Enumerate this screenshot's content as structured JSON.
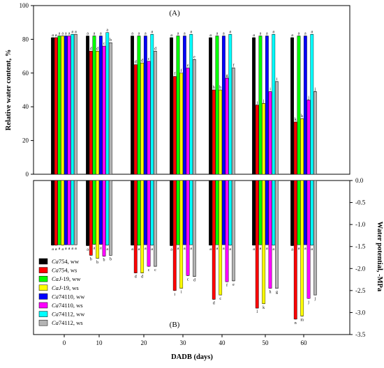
{
  "chart_data": [
    {
      "type": "bar",
      "panel_label": "(A)",
      "ylabel": "Relative water content, %",
      "ylim": [
        0,
        100
      ],
      "yticks": [
        0,
        20,
        40,
        60,
        80,
        100
      ],
      "categories": [
        "0",
        "10",
        "20",
        "30",
        "40",
        "50",
        "60"
      ],
      "series": [
        {
          "name": "Ca754, ww",
          "color": "#000000",
          "values": [
            81,
            82,
            82,
            81,
            81,
            81,
            81
          ]
        },
        {
          "name": "Ca754, ws",
          "color": "#ff0000",
          "values": [
            81,
            73,
            65,
            58,
            50,
            41,
            31
          ]
        },
        {
          "name": "CaJ-19, ww",
          "color": "#00ff00",
          "values": [
            82,
            82,
            82,
            82,
            82,
            82,
            82
          ]
        },
        {
          "name": "CaJ-19, ws",
          "color": "#ffff00",
          "values": [
            82,
            73,
            66,
            60,
            50,
            42,
            33
          ]
        },
        {
          "name": "Ca74110, ww",
          "color": "#0000ff",
          "values": [
            82,
            82,
            82,
            82,
            82,
            82,
            82
          ]
        },
        {
          "name": "Ca74110, ws",
          "color": "#ff00ff",
          "values": [
            82,
            76,
            67,
            63,
            57,
            49,
            44
          ]
        },
        {
          "name": "Ca74112, ww",
          "color": "#00ffff",
          "values": [
            83,
            84,
            83,
            83,
            83,
            83,
            83
          ]
        },
        {
          "name": "Ca74112, ws",
          "color": "#b4b4b4",
          "values": [
            83,
            78,
            73,
            68,
            63,
            55,
            49
          ]
        }
      ],
      "letters": [
        [
          "a",
          "a",
          "a",
          "a",
          "a",
          "a",
          "a"
        ],
        [
          "a",
          "d",
          "d",
          "f",
          "h",
          "j",
          "k"
        ],
        [
          "a",
          "a",
          "a",
          "a",
          "a",
          "a",
          "a"
        ],
        [
          "a",
          "d",
          "d",
          "f",
          "h",
          "j",
          "k"
        ],
        [
          "a",
          "a",
          "a",
          "a",
          "a",
          "a",
          "a"
        ],
        [
          "a",
          "c",
          "c",
          "e",
          "g",
          "i",
          "j"
        ],
        [
          "a",
          "a",
          "a",
          "a",
          "a",
          "a",
          "a"
        ],
        [
          "a",
          "b",
          "d",
          "e",
          "f",
          "i",
          "j"
        ]
      ]
    },
    {
      "type": "bar",
      "panel_label": "(B)",
      "ylabel": "Water potential, -MPa",
      "xlabel": "DADB (days)",
      "ylim": [
        0,
        -3.5
      ],
      "yticks": [
        0.0,
        -0.5,
        -1.0,
        -1.5,
        -2.0,
        -2.5,
        -3.0,
        -3.5
      ],
      "categories": [
        "0",
        "10",
        "20",
        "30",
        "40",
        "50",
        "60"
      ],
      "series": [
        {
          "name": "Ca754, ww",
          "values": [
            -1.47,
            -1.48,
            -1.47,
            -1.48,
            -1.47,
            -1.47,
            -1.48
          ]
        },
        {
          "name": "Ca754, ws",
          "values": [
            -1.47,
            -1.7,
            -2.1,
            -2.5,
            -2.7,
            -2.9,
            -3.15
          ]
        },
        {
          "name": "CaJ-19, ww",
          "values": [
            -1.46,
            -1.45,
            -1.47,
            -1.46,
            -1.46,
            -1.46,
            -1.46
          ]
        },
        {
          "name": "CaJ-19, ws",
          "values": [
            -1.47,
            -1.77,
            -2.1,
            -2.45,
            -2.6,
            -2.8,
            -3.08
          ]
        },
        {
          "name": "Ca74110, ww",
          "values": [
            -1.46,
            -1.45,
            -1.46,
            -1.46,
            -1.46,
            -1.46,
            -1.46
          ]
        },
        {
          "name": "Ca74110, ws",
          "values": [
            -1.46,
            -1.72,
            -1.95,
            -2.16,
            -2.3,
            -2.45,
            -2.68
          ]
        },
        {
          "name": "Ca74112, ww",
          "values": [
            -1.46,
            -1.47,
            -1.47,
            -1.46,
            -1.47,
            -1.47,
            -1.47
          ]
        },
        {
          "name": "Ca74112, ws",
          "values": [
            -1.46,
            -1.7,
            -1.95,
            -2.18,
            -2.28,
            -2.45,
            -2.6
          ]
        }
      ],
      "letters": [
        [
          "a",
          "a",
          "a",
          "a",
          "a",
          "a",
          "a"
        ],
        [
          "a",
          "b",
          "d",
          "i",
          "d",
          "l",
          "n"
        ],
        [
          "a",
          "a",
          "a",
          "a",
          "a",
          "a",
          "a"
        ],
        [
          "a",
          "b",
          "d",
          "i",
          "c",
          "k",
          "m"
        ],
        [
          "a",
          "a",
          "a",
          "a",
          "a",
          "a",
          "a"
        ],
        [
          "a",
          "b",
          "c",
          "c",
          "f",
          "h",
          "j"
        ],
        [
          "a",
          "a",
          "a",
          "a",
          "a",
          "a",
          "a"
        ],
        [
          "a",
          "b",
          "c",
          "d",
          "e",
          "g",
          "j"
        ]
      ]
    }
  ],
  "legend": {
    "entries": [
      {
        "italic": "Ca",
        "rest": "754, ww",
        "color": "#000000"
      },
      {
        "italic": "Ca",
        "rest": "754, ws",
        "color": "#ff0000"
      },
      {
        "italic": "CaJ",
        "rest": "-19, ww",
        "color": "#00ff00"
      },
      {
        "italic": "CaJ",
        "rest": "-19, ws",
        "color": "#ffff00"
      },
      {
        "italic": "Ca",
        "rest": "74110, ww",
        "color": "#0000ff"
      },
      {
        "italic": "Ca",
        "rest": "74110, ws",
        "color": "#ff00ff"
      },
      {
        "italic": "Ca",
        "rest": "74112, ww",
        "color": "#00ffff"
      },
      {
        "italic": "Ca",
        "rest": "74112, ws",
        "color": "#b4b4b4"
      }
    ]
  }
}
